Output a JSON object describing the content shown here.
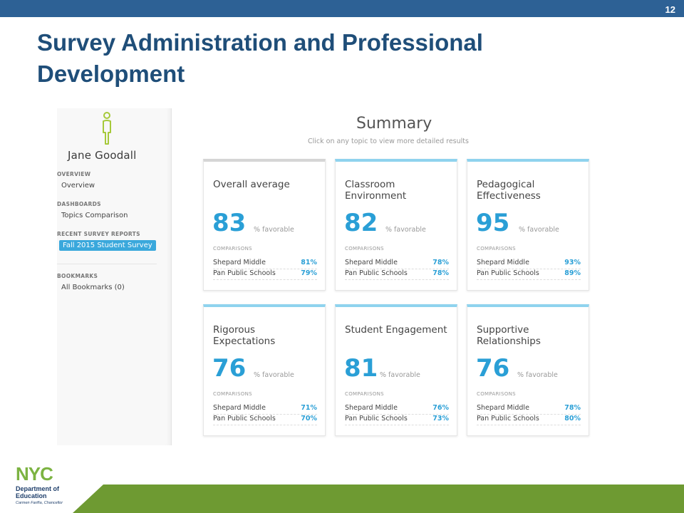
{
  "slide": {
    "number": "12",
    "title": "Survey Administration and Professional Development"
  },
  "sidebar": {
    "user_name": "Jane Goodall",
    "sections": [
      {
        "label": "OVERVIEW",
        "items": [
          "Overview"
        ]
      },
      {
        "label": "DASHBOARDS",
        "items": [
          "Topics Comparison"
        ]
      },
      {
        "label": "RECENT SURVEY REPORTS",
        "items": [
          "Fall 2015 Student Survey"
        ]
      },
      {
        "label": "BOOKMARKS",
        "items": [
          "All Bookmarks (0)"
        ]
      }
    ]
  },
  "summary": {
    "title": "Summary",
    "subtitle": "Click on any topic to view more detailed results"
  },
  "cards": [
    {
      "title": "Overall average",
      "score": "83",
      "score_label": "% favorable",
      "comparisons_label": "COMPARISONS",
      "comparisons": [
        {
          "name": "Shepard Middle",
          "value": "81%"
        },
        {
          "name": "Pan Public Schools",
          "value": "79%"
        }
      ]
    },
    {
      "title": "Classroom Environment",
      "score": "82",
      "score_label": "% favorable",
      "comparisons_label": "COMPARISONS",
      "comparisons": [
        {
          "name": "Shepard Middle",
          "value": "78%"
        },
        {
          "name": "Pan Public Schools",
          "value": "78%"
        }
      ]
    },
    {
      "title": "Pedagogical Effectiveness",
      "score": "95",
      "score_label": "% favorable",
      "comparisons_label": "COMPARISONS",
      "comparisons": [
        {
          "name": "Shepard Middle",
          "value": "93%"
        },
        {
          "name": "Pan Public Schools",
          "value": "89%"
        }
      ]
    },
    {
      "title": "Rigorous Expectations",
      "score": "76",
      "score_label": "% favorable",
      "comparisons_label": "COMPARISONS",
      "comparisons": [
        {
          "name": "Shepard Middle",
          "value": "71%"
        },
        {
          "name": "Pan Public Schools",
          "value": "70%"
        }
      ]
    },
    {
      "title": "Student Engagement",
      "score": "81",
      "score_label": "% favorable",
      "comparisons_label": "COMPARISONS",
      "comparisons": [
        {
          "name": "Shepard Middle",
          "value": "76%"
        },
        {
          "name": "Pan Public Schools",
          "value": "73%"
        }
      ]
    },
    {
      "title": "Supportive Relationships",
      "score": "76",
      "score_label": "% favorable",
      "comparisons_label": "COMPARISONS",
      "comparisons": [
        {
          "name": "Shepard Middle",
          "value": "78%"
        },
        {
          "name": "Pan Public Schools",
          "value": "80%"
        }
      ]
    }
  ],
  "logo": {
    "text": "NYC",
    "dept_line1": "Department of",
    "dept_line2": "Education",
    "chancellor": "Carmen Fariña, Chancellor"
  },
  "colors": {
    "header_bar": "#2d6195",
    "title": "#1f4e79",
    "accent_blue": "#2a9fd6",
    "footer_green": "#6e9a32",
    "active_nav": "#3aa8dc"
  }
}
